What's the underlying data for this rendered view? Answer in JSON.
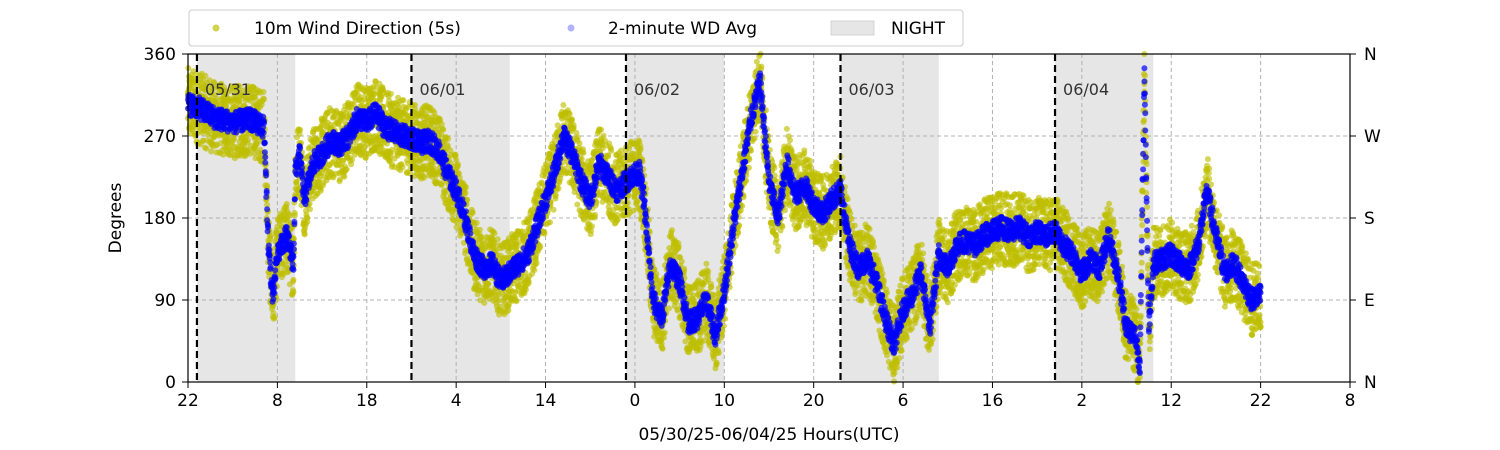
{
  "chart_data": {
    "type": "scatter",
    "title": "",
    "xlabel": "05/30/25-06/04/25  Hours(UTC)",
    "ylabel": "Degrees",
    "ylim": [
      0,
      360
    ],
    "xlim": [
      0,
      130
    ],
    "yticks": [
      0,
      90,
      180,
      270,
      360
    ],
    "right_ticks": [
      {
        "value": 0,
        "label": "N"
      },
      {
        "value": 90,
        "label": "E"
      },
      {
        "value": 180,
        "label": "S"
      },
      {
        "value": 270,
        "label": "W"
      },
      {
        "value": 360,
        "label": "N"
      }
    ],
    "xticks": [
      {
        "value": 0,
        "label": "22"
      },
      {
        "value": 10,
        "label": "8"
      },
      {
        "value": 20,
        "label": "18"
      },
      {
        "value": 30,
        "label": "4"
      },
      {
        "value": 40,
        "label": "14"
      },
      {
        "value": 50,
        "label": "0"
      },
      {
        "value": 60,
        "label": "10"
      },
      {
        "value": 70,
        "label": "20"
      },
      {
        "value": 80,
        "label": "6"
      },
      {
        "value": 90,
        "label": "16"
      },
      {
        "value": 100,
        "label": "2"
      },
      {
        "value": 110,
        "label": "12"
      },
      {
        "value": 120,
        "label": "22"
      },
      {
        "value": 130,
        "label": "8"
      }
    ],
    "grid": true,
    "legend_position": "top-center",
    "night_periods": [
      [
        1,
        12
      ],
      [
        25,
        36
      ],
      [
        49,
        60
      ],
      [
        73,
        84
      ],
      [
        97,
        108
      ]
    ],
    "day_boundaries": [
      {
        "x": 1,
        "label": "05/31"
      },
      {
        "x": 25,
        "label": "06/01"
      },
      {
        "x": 49,
        "label": "06/02"
      },
      {
        "x": 73,
        "label": "06/03"
      },
      {
        "x": 97,
        "label": "06/04"
      }
    ],
    "series": [
      {
        "name": "10m Wind Direction (5s)",
        "color": "#bfbf00",
        "marker": "circle"
      },
      {
        "name": "2-minute WD Avg",
        "color": "#0000ff",
        "marker": "circle"
      },
      {
        "name": "NIGHT",
        "color": "#e6e6e6",
        "marker": "patch"
      }
    ],
    "avg_trace": [
      [
        0,
        305
      ],
      [
        1,
        302
      ],
      [
        3,
        290
      ],
      [
        5,
        285
      ],
      [
        7,
        288
      ],
      [
        8.5,
        280
      ],
      [
        9,
        150
      ],
      [
        9.5,
        90
      ],
      [
        10,
        140
      ],
      [
        11,
        160
      ],
      [
        11.8,
        130
      ],
      [
        12,
        230
      ],
      [
        12.5,
        250
      ],
      [
        13,
        200
      ],
      [
        14,
        240
      ],
      [
        15,
        250
      ],
      [
        16,
        265
      ],
      [
        17,
        260
      ],
      [
        18,
        270
      ],
      [
        19,
        290
      ],
      [
        20,
        285
      ],
      [
        21,
        295
      ],
      [
        22,
        280
      ],
      [
        23,
        275
      ],
      [
        24,
        270
      ],
      [
        25,
        268
      ],
      [
        26,
        262
      ],
      [
        27,
        265
      ],
      [
        28,
        255
      ],
      [
        29,
        230
      ],
      [
        30,
        210
      ],
      [
        31,
        180
      ],
      [
        32,
        140
      ],
      [
        33,
        125
      ],
      [
        34,
        130
      ],
      [
        35,
        110
      ],
      [
        36,
        120
      ],
      [
        37,
        130
      ],
      [
        38,
        140
      ],
      [
        39,
        170
      ],
      [
        40,
        200
      ],
      [
        41,
        230
      ],
      [
        42,
        270
      ],
      [
        43,
        250
      ],
      [
        44,
        220
      ],
      [
        45,
        200
      ],
      [
        46,
        240
      ],
      [
        47,
        225
      ],
      [
        48,
        210
      ],
      [
        49,
        220
      ],
      [
        49.5,
        225
      ],
      [
        50.5,
        230
      ],
      [
        51,
        200
      ],
      [
        52,
        90
      ],
      [
        53,
        70
      ],
      [
        54,
        130
      ],
      [
        55,
        110
      ],
      [
        56,
        65
      ],
      [
        57,
        70
      ],
      [
        58,
        90
      ],
      [
        59,
        50
      ],
      [
        60,
        100
      ],
      [
        61,
        170
      ],
      [
        62,
        230
      ],
      [
        63,
        290
      ],
      [
        64,
        330
      ],
      [
        65,
        220
      ],
      [
        66,
        180
      ],
      [
        67,
        240
      ],
      [
        68,
        205
      ],
      [
        69,
        215
      ],
      [
        70,
        195
      ],
      [
        71,
        185
      ],
      [
        72,
        200
      ],
      [
        73,
        210
      ],
      [
        74,
        150
      ],
      [
        75,
        125
      ],
      [
        76,
        135
      ],
      [
        77,
        110
      ],
      [
        78,
        70
      ],
      [
        79,
        40
      ],
      [
        80,
        80
      ],
      [
        81,
        95
      ],
      [
        82,
        120
      ],
      [
        83,
        60
      ],
      [
        84,
        140
      ],
      [
        85,
        125
      ],
      [
        86,
        150
      ],
      [
        87,
        155
      ],
      [
        88,
        150
      ],
      [
        89,
        160
      ],
      [
        90,
        165
      ],
      [
        91,
        170
      ],
      [
        92,
        165
      ],
      [
        93,
        170
      ],
      [
        94,
        160
      ],
      [
        95,
        165
      ],
      [
        96,
        160
      ],
      [
        97,
        165
      ],
      [
        98,
        150
      ],
      [
        99,
        140
      ],
      [
        100,
        120
      ],
      [
        101,
        135
      ],
      [
        102,
        125
      ],
      [
        103,
        160
      ],
      [
        104,
        120
      ],
      [
        105,
        60
      ],
      [
        106,
        50
      ],
      [
        106.5,
        20
      ],
      [
        107,
        340
      ],
      [
        107.5,
        60
      ],
      [
        108,
        130
      ],
      [
        109,
        135
      ],
      [
        110,
        140
      ],
      [
        111,
        130
      ],
      [
        112,
        125
      ],
      [
        113,
        150
      ],
      [
        114,
        210
      ],
      [
        115,
        160
      ],
      [
        116,
        120
      ],
      [
        117,
        130
      ],
      [
        118,
        110
      ],
      [
        119,
        90
      ],
      [
        120,
        95
      ]
    ]
  }
}
